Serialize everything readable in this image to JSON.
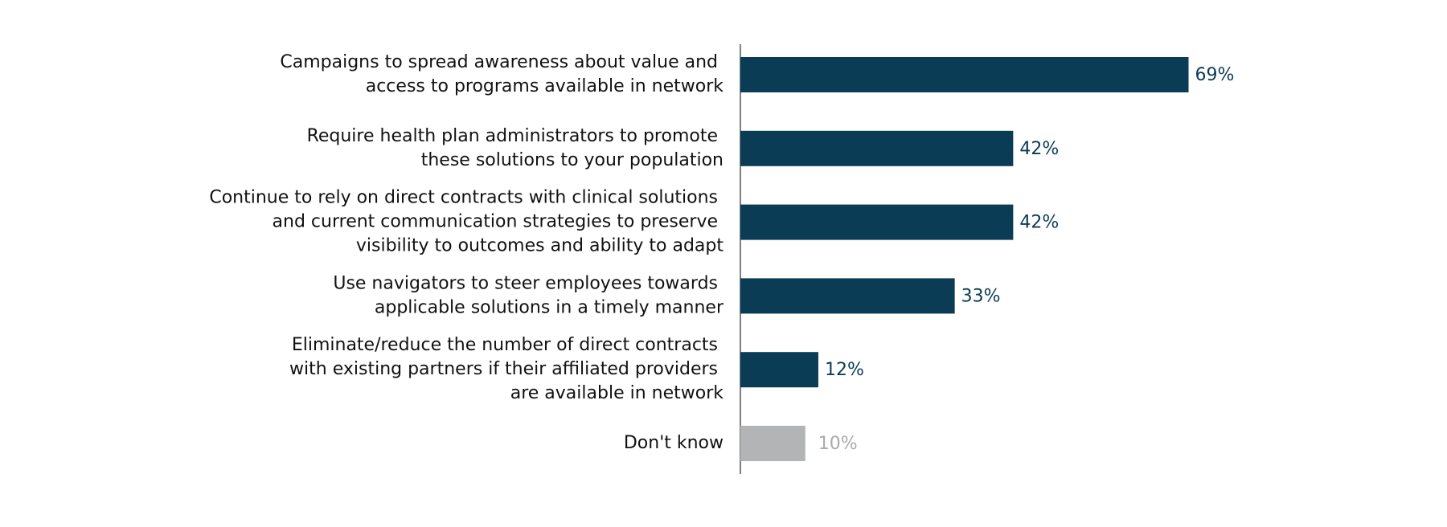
{
  "chart_data": {
    "type": "bar",
    "orientation": "horizontal",
    "categories": [
      "Campaigns to spread awareness about value and\naccess to programs available in network",
      "Require health plan administrators to promote\nthese solutions to your population",
      "Continue to rely on direct contracts with clinical solutions\nand current communication strategies to preserve\nvisibility to outcomes and ability to adapt",
      "Use navigators to steer employees towards\napplicable solutions in a timely manner",
      "Eliminate/reduce the number of direct contracts\nwith existing partners if their affiliated providers\nare available in network",
      "Don't know"
    ],
    "values": [
      69,
      42,
      42,
      33,
      12,
      10
    ],
    "value_labels": [
      "69%",
      "42%",
      "42%",
      "33%",
      "12%",
      "10%"
    ],
    "colors": [
      "#0b3c55",
      "#0b3c55",
      "#0b3c55",
      "#0b3c55",
      "#0b3c55",
      "#b3b4b5"
    ],
    "label_colors": [
      "#0b3c55",
      "#0b3c55",
      "#0b3c55",
      "#0b3c55",
      "#0b3c55",
      "#aaaaaa"
    ]
  }
}
